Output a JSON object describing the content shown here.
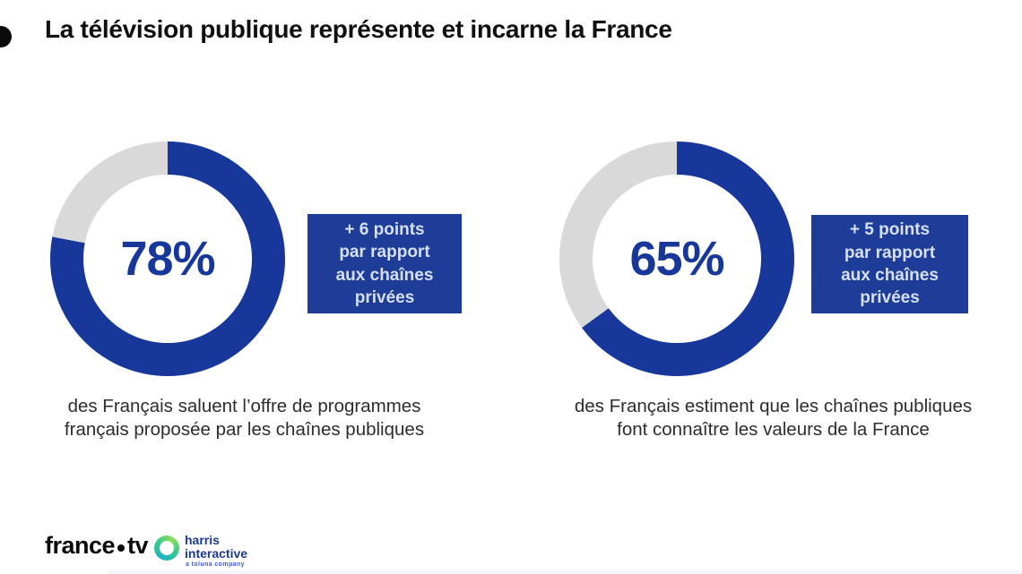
{
  "title": {
    "text": "La télévision publique représente et incarne la France"
  },
  "colors": {
    "brand_blue": "#17379B",
    "box_blue": "#1E3D99",
    "donut_gray": "#D9D9D9",
    "title_black": "#101010",
    "caption_gray": "#2D2D2D",
    "box_text": "#D7DFF3"
  },
  "stats": [
    {
      "percent": 78,
      "percent_label": "78%",
      "delta_lines": [
        "+ 6 points",
        "par rapport",
        "aux chaînes",
        "privées"
      ],
      "caption_lines": [
        "des Français saluent l’offre de programmes",
        "français proposée par les chaînes publiques"
      ]
    },
    {
      "percent": 65,
      "percent_label": "65%",
      "delta_lines": [
        "+ 5 points",
        "par rapport",
        "aux chaînes",
        "privées"
      ],
      "caption_lines": [
        "des Français estiment que les chaînes publiques",
        "font connaître les valeurs de la France"
      ]
    }
  ],
  "footer": {
    "francetv_part1": "france",
    "francetv_part2": "tv",
    "harris_line1": "harris",
    "harris_line2": "interactive",
    "harris_tagline": "a toluna company"
  },
  "chart_data": [
    {
      "type": "pie",
      "subtype": "donut",
      "title": "des Français saluent l’offre de programmes français proposée par les chaînes publiques",
      "labels": [
        "chaînes publiques",
        "reste"
      ],
      "values": [
        78,
        22
      ],
      "center_label": "78%",
      "annotation": "+ 6 points par rapport aux chaînes privées",
      "colors": [
        "#17379B",
        "#D9D9D9"
      ],
      "start_angle_deg": 0,
      "direction": "clockwise",
      "legend": false
    },
    {
      "type": "pie",
      "subtype": "donut",
      "title": "des Français estiment que les chaînes publiques font connaître les valeurs de la France",
      "labels": [
        "chaînes publiques",
        "reste"
      ],
      "values": [
        65,
        35
      ],
      "center_label": "65%",
      "annotation": "+ 5 points par rapport aux chaînes privées",
      "colors": [
        "#17379B",
        "#D9D9D9"
      ],
      "start_angle_deg": 0,
      "direction": "clockwise",
      "legend": false
    }
  ]
}
